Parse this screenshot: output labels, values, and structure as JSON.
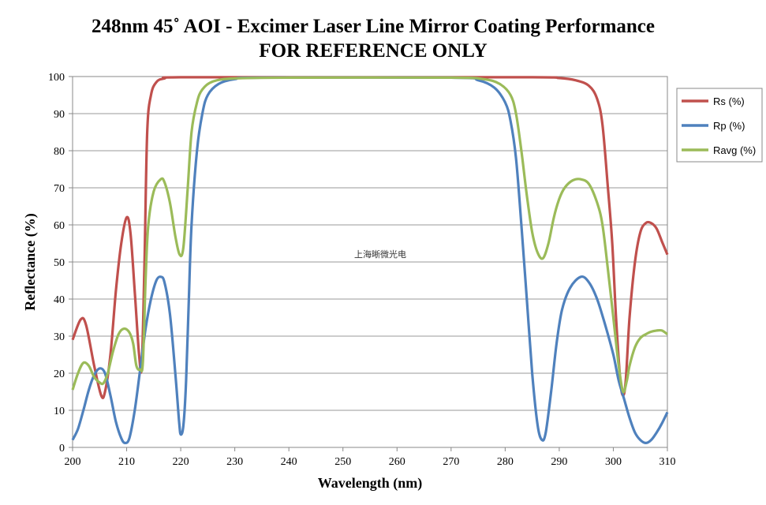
{
  "chart_data": {
    "type": "line",
    "title": "248nm 45˚ AOI - Excimer Laser Line Mirror Coating Performance",
    "subtitle": "FOR REFERENCE ONLY",
    "xlabel": "Wavelength (nm)",
    "ylabel": "Reflectance (%)",
    "xlim": [
      200,
      310
    ],
    "ylim": [
      0,
      100
    ],
    "xticks": [
      "200",
      "210",
      "220",
      "230",
      "240",
      "250",
      "260",
      "270",
      "280",
      "290",
      "300",
      "310"
    ],
    "yticks": [
      "0",
      "10",
      "20",
      "30",
      "40",
      "50",
      "60",
      "70",
      "80",
      "90",
      "100"
    ],
    "grid": "horizontal",
    "legend_position": "right",
    "annotation": "上海晰微光电",
    "series": [
      {
        "name": "Rs (%)",
        "color": "#c0504d",
        "points": [
          [
            200,
            29
          ],
          [
            201.5,
            34.5
          ],
          [
            202.5,
            33
          ],
          [
            204,
            22
          ],
          [
            205.3,
            14
          ],
          [
            206,
            15
          ],
          [
            207,
            25
          ],
          [
            208,
            42
          ],
          [
            209,
            55
          ],
          [
            210,
            62
          ],
          [
            210.7,
            58
          ],
          [
            211.5,
            42
          ],
          [
            212.3,
            25
          ],
          [
            212.8,
            22
          ],
          [
            213.3,
            50
          ],
          [
            213.8,
            85
          ],
          [
            214.5,
            95
          ],
          [
            215.5,
            98.5
          ],
          [
            217,
            99.5
          ],
          [
            220,
            99.8
          ],
          [
            250,
            99.8
          ],
          [
            285,
            99.8
          ],
          [
            290,
            99.6
          ],
          [
            293,
            99
          ],
          [
            295.5,
            97.5
          ],
          [
            297,
            94
          ],
          [
            298,
            87
          ],
          [
            299,
            70
          ],
          [
            299.8,
            55
          ],
          [
            300.5,
            35
          ],
          [
            301.3,
            18
          ],
          [
            301.8,
            14
          ],
          [
            302.3,
            18
          ],
          [
            303,
            35
          ],
          [
            304,
            50
          ],
          [
            305,
            58
          ],
          [
            306,
            60.5
          ],
          [
            307,
            60.5
          ],
          [
            308,
            59
          ],
          [
            309,
            55.5
          ],
          [
            310,
            52
          ]
        ]
      },
      {
        "name": "Rp (%)",
        "color": "#4f81bd",
        "points": [
          [
            200,
            2
          ],
          [
            201,
            5
          ],
          [
            202,
            10
          ],
          [
            203,
            15.5
          ],
          [
            204,
            19.5
          ],
          [
            205,
            21.3
          ],
          [
            206,
            20
          ],
          [
            207,
            14
          ],
          [
            208,
            7
          ],
          [
            209,
            2.5
          ],
          [
            209.7,
            1.2
          ],
          [
            210.5,
            2.5
          ],
          [
            211.5,
            10
          ],
          [
            212.5,
            21
          ],
          [
            213.5,
            32
          ],
          [
            214.5,
            40
          ],
          [
            215.5,
            45
          ],
          [
            216.3,
            46
          ],
          [
            217,
            44.5
          ],
          [
            218,
            36
          ],
          [
            219,
            20
          ],
          [
            219.7,
            7
          ],
          [
            220,
            3.5
          ],
          [
            220.5,
            6
          ],
          [
            221,
            18
          ],
          [
            221.5,
            40
          ],
          [
            222,
            60
          ],
          [
            223,
            80
          ],
          [
            224,
            90
          ],
          [
            225,
            95
          ],
          [
            227,
            98
          ],
          [
            230,
            99.3
          ],
          [
            235,
            99.7
          ],
          [
            270,
            99.7
          ],
          [
            275,
            99
          ],
          [
            278,
            97
          ],
          [
            280,
            93
          ],
          [
            281,
            88
          ],
          [
            282,
            78
          ],
          [
            283,
            60
          ],
          [
            284,
            40
          ],
          [
            285,
            20
          ],
          [
            286,
            6
          ],
          [
            286.8,
            2
          ],
          [
            287.5,
            4
          ],
          [
            288.5,
            15
          ],
          [
            289.5,
            28
          ],
          [
            290.5,
            37
          ],
          [
            292,
            43
          ],
          [
            294,
            46
          ],
          [
            295.5,
            44.5
          ],
          [
            297,
            40
          ],
          [
            298.5,
            33
          ],
          [
            300,
            25
          ],
          [
            301,
            18
          ],
          [
            302,
            13
          ],
          [
            303,
            8
          ],
          [
            304,
            4
          ],
          [
            305,
            2
          ],
          [
            306,
            1.2
          ],
          [
            307,
            2
          ],
          [
            308,
            4
          ],
          [
            309,
            6.5
          ],
          [
            310,
            9.5
          ]
        ]
      },
      {
        "name": "Ravg (%)",
        "color": "#9bbb59",
        "points": [
          [
            200,
            15.5
          ],
          [
            201,
            20
          ],
          [
            202,
            22.8
          ],
          [
            203,
            22
          ],
          [
            204,
            19
          ],
          [
            205,
            17.5
          ],
          [
            205.7,
            17.3
          ],
          [
            206.5,
            20
          ],
          [
            207.5,
            26
          ],
          [
            208.5,
            30.5
          ],
          [
            209.5,
            32
          ],
          [
            210.5,
            31
          ],
          [
            211.2,
            28
          ],
          [
            211.8,
            22
          ],
          [
            212.5,
            21
          ],
          [
            213,
            23
          ],
          [
            213.5,
            45
          ],
          [
            214,
            60
          ],
          [
            215,
            69
          ],
          [
            216.3,
            72.3
          ],
          [
            217,
            71.5
          ],
          [
            218,
            66
          ],
          [
            219,
            57
          ],
          [
            219.8,
            52
          ],
          [
            220.5,
            54
          ],
          [
            221.3,
            70
          ],
          [
            222,
            85
          ],
          [
            223,
            93
          ],
          [
            224,
            96.5
          ],
          [
            226,
            98.7
          ],
          [
            230,
            99.5
          ],
          [
            240,
            99.7
          ],
          [
            270,
            99.7
          ],
          [
            276,
            99.3
          ],
          [
            279,
            98
          ],
          [
            281,
            95
          ],
          [
            282,
            90
          ],
          [
            283,
            80
          ],
          [
            284,
            68
          ],
          [
            285,
            58
          ],
          [
            286,
            52.5
          ],
          [
            287,
            51
          ],
          [
            288,
            55
          ],
          [
            289,
            62
          ],
          [
            290,
            67
          ],
          [
            291,
            70
          ],
          [
            292.5,
            72
          ],
          [
            294,
            72.3
          ],
          [
            295.5,
            71
          ],
          [
            297,
            66
          ],
          [
            298,
            60
          ],
          [
            299,
            48
          ],
          [
            300,
            35
          ],
          [
            301,
            22
          ],
          [
            301.8,
            15
          ],
          [
            302.5,
            18
          ],
          [
            303,
            22
          ],
          [
            304,
            27
          ],
          [
            305,
            29.5
          ],
          [
            306,
            30.5
          ],
          [
            307,
            31.2
          ],
          [
            308,
            31.5
          ],
          [
            309,
            31.5
          ],
          [
            310,
            30.5
          ]
        ]
      }
    ]
  }
}
